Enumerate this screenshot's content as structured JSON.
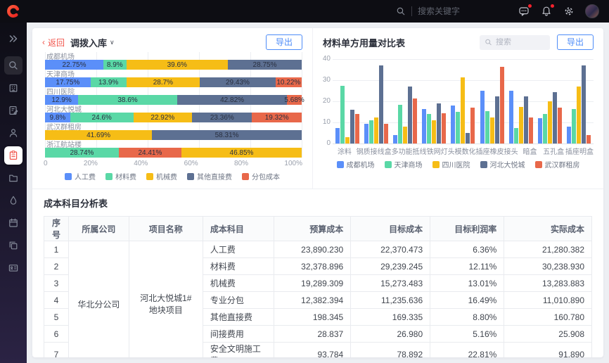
{
  "topbar": {
    "logo": "C",
    "search_placeholder": "搜索关键字",
    "icons": [
      {
        "name": "message-icon",
        "badge": true
      },
      {
        "name": "bell-icon",
        "badge": true
      },
      {
        "name": "gear-icon",
        "badge": false
      }
    ]
  },
  "sidebar": {
    "items": [
      {
        "name": "sidebar-expand",
        "icon": "double-chevron-right-icon",
        "style": "expand"
      },
      {
        "name": "sidebar-item-search",
        "icon": "search-icon",
        "style": "boxed"
      },
      {
        "name": "sidebar-item-organization",
        "icon": "building-icon",
        "style": ""
      },
      {
        "name": "sidebar-item-documents",
        "icon": "document-edit-icon",
        "style": ""
      },
      {
        "name": "sidebar-item-users",
        "icon": "user-icon",
        "style": ""
      },
      {
        "name": "sidebar-item-inventory",
        "icon": "clipboard-icon",
        "style": "active"
      },
      {
        "name": "sidebar-item-files",
        "icon": "folder-icon",
        "style": ""
      },
      {
        "name": "sidebar-item-materials",
        "icon": "drop-icon",
        "style": ""
      },
      {
        "name": "sidebar-item-schedule",
        "icon": "calendar-icon",
        "style": ""
      },
      {
        "name": "sidebar-item-copy",
        "icon": "copy-icon",
        "style": ""
      },
      {
        "name": "sidebar-item-transfer",
        "icon": "id-card-icon",
        "style": ""
      }
    ]
  },
  "transfer_panel": {
    "back_arrow": "‹",
    "back_label": "返回",
    "title": "调拨入库",
    "caret": "∨",
    "export_label": "导出",
    "chart_data": {
      "type": "bar",
      "orientation": "horizontal-stacked-percent",
      "xlim": [
        0,
        100
      ],
      "x_ticks": [
        "0",
        "20%",
        "40%",
        "60%",
        "80%",
        "100%"
      ],
      "series": [
        "人工费",
        "材料费",
        "机械费",
        "其他直接费",
        "分包成本"
      ],
      "series_colors": {
        "人工费": "#5B8FF9",
        "材料费": "#5AD8A6",
        "机械费": "#F6BD16",
        "其他直接费": "#5D7092",
        "分包成本": "#E8684A"
      },
      "categories": [
        {
          "name": "成都机场",
          "segments": [
            {
              "series": "人工费",
              "value": 22.75
            },
            {
              "series": "材料费",
              "value": 8.9
            },
            {
              "series": "机械费",
              "value": 39.6
            },
            {
              "series": "其他直接费",
              "value": 28.75
            }
          ]
        },
        {
          "name": "天津商场",
          "segments": [
            {
              "series": "人工费",
              "value": 17.75
            },
            {
              "series": "材料费",
              "value": 13.9
            },
            {
              "series": "机械费",
              "value": 28.7
            },
            {
              "series": "其他直接费",
              "value": 29.43
            },
            {
              "series": "分包成本",
              "value": 10.22
            }
          ]
        },
        {
          "name": "四川医院",
          "segments": [
            {
              "series": "人工费",
              "value": 12.9
            },
            {
              "series": "材料费",
              "value": 38.6
            },
            {
              "series": "其他直接费",
              "value": 42.82
            },
            {
              "series": "分包成本",
              "value": 5.68
            }
          ]
        },
        {
          "name": "河北大悦城",
          "segments": [
            {
              "series": "人工费",
              "value": 9.8
            },
            {
              "series": "材料费",
              "value": 24.6
            },
            {
              "series": "机械费",
              "value": 22.92
            },
            {
              "series": "其他直接费",
              "value": 23.36
            },
            {
              "series": "分包成本",
              "value": 19.32
            }
          ]
        },
        {
          "name": "武汉群租房",
          "segments": [
            {
              "series": "机械费",
              "value": 41.69
            },
            {
              "series": "其他直接费",
              "value": 58.31
            }
          ]
        },
        {
          "name": "浙江航站楼",
          "segments": [
            {
              "series": "材料费",
              "value": 28.74
            },
            {
              "series": "分包成本",
              "value": 24.41
            },
            {
              "series": "机械费",
              "value": 46.85
            }
          ]
        }
      ]
    }
  },
  "material_panel": {
    "title": "材料单方用量对比表",
    "search_placeholder": "搜索",
    "export_label": "导出",
    "chart_data": {
      "type": "bar",
      "orientation": "vertical-grouped",
      "ylim": [
        0,
        40
      ],
      "y_ticks": [
        0,
        10,
        20,
        30,
        40
      ],
      "categories": [
        "涂料",
        "钢质接线盒",
        "多功能抵线",
        "铁网灯头",
        "模数化插座",
        "橡皮接头",
        "暗盒",
        "五孔盒",
        "插座明盒"
      ],
      "series": [
        {
          "name": "成都机场",
          "color": "#5B8FF9",
          "values": [
            7.5,
            9.5,
            4,
            16.5,
            18,
            25,
            25,
            12,
            8
          ]
        },
        {
          "name": "天津商场",
          "color": "#5AD8A6",
          "values": [
            27.5,
            11,
            18.5,
            14,
            15,
            15.5,
            7.5,
            14,
            16.5
          ]
        },
        {
          "name": "四川医院",
          "color": "#F6BD16",
          "values": [
            3,
            12.5,
            8,
            11,
            31.5,
            12.5,
            17.5,
            20,
            27
          ]
        },
        {
          "name": "河北大悦城",
          "color": "#5D7092",
          "values": [
            16,
            37,
            27,
            19,
            5,
            22.5,
            22.5,
            24.5,
            37
          ]
        },
        {
          "name": "武汉群租房",
          "color": "#E8684A",
          "values": [
            14,
            9.5,
            21.5,
            14.5,
            17,
            36.5,
            12.5,
            17,
            4
          ]
        }
      ]
    }
  },
  "cost_table": {
    "title": "成本科目分析表",
    "columns": [
      "序号",
      "所属公司",
      "项目名称",
      "成本科目",
      "预算成本",
      "目标成本",
      "目标利润率",
      "实际成本"
    ],
    "company": "华北分公司",
    "project": "河北大悦城1#地块项目",
    "rows": [
      {
        "index": "1",
        "subject": "人工费",
        "budget": "23,890.230",
        "target": "22,370.473",
        "target_rate": "6.36%",
        "actual": "21,280.382"
      },
      {
        "index": "2",
        "subject": "材料费",
        "budget": "32,378.896",
        "target": "29,239.245",
        "target_rate": "12.11%",
        "actual": "30,238.930"
      },
      {
        "index": "3",
        "subject": "机械费",
        "budget": "19,289.309",
        "target": "15,273.483",
        "target_rate": "13.01%",
        "actual": "13,283.883"
      },
      {
        "index": "4",
        "subject": "专业分包",
        "budget": "12,382.394",
        "target": "11,235.636",
        "target_rate": "16.49%",
        "actual": "11,010.890"
      },
      {
        "index": "5",
        "subject": "其他直接费",
        "budget": "198.345",
        "target": "169.335",
        "target_rate": "8.80%",
        "actual": "160.780"
      },
      {
        "index": "6",
        "subject": "间接费用",
        "budget": "28.837",
        "target": "26.980",
        "target_rate": "5.16%",
        "actual": "25.908"
      },
      {
        "index": "7",
        "subject": "安全文明施工费",
        "budget": "93.784",
        "target": "78.892",
        "target_rate": "22.81%",
        "actual": "91.890"
      }
    ]
  }
}
